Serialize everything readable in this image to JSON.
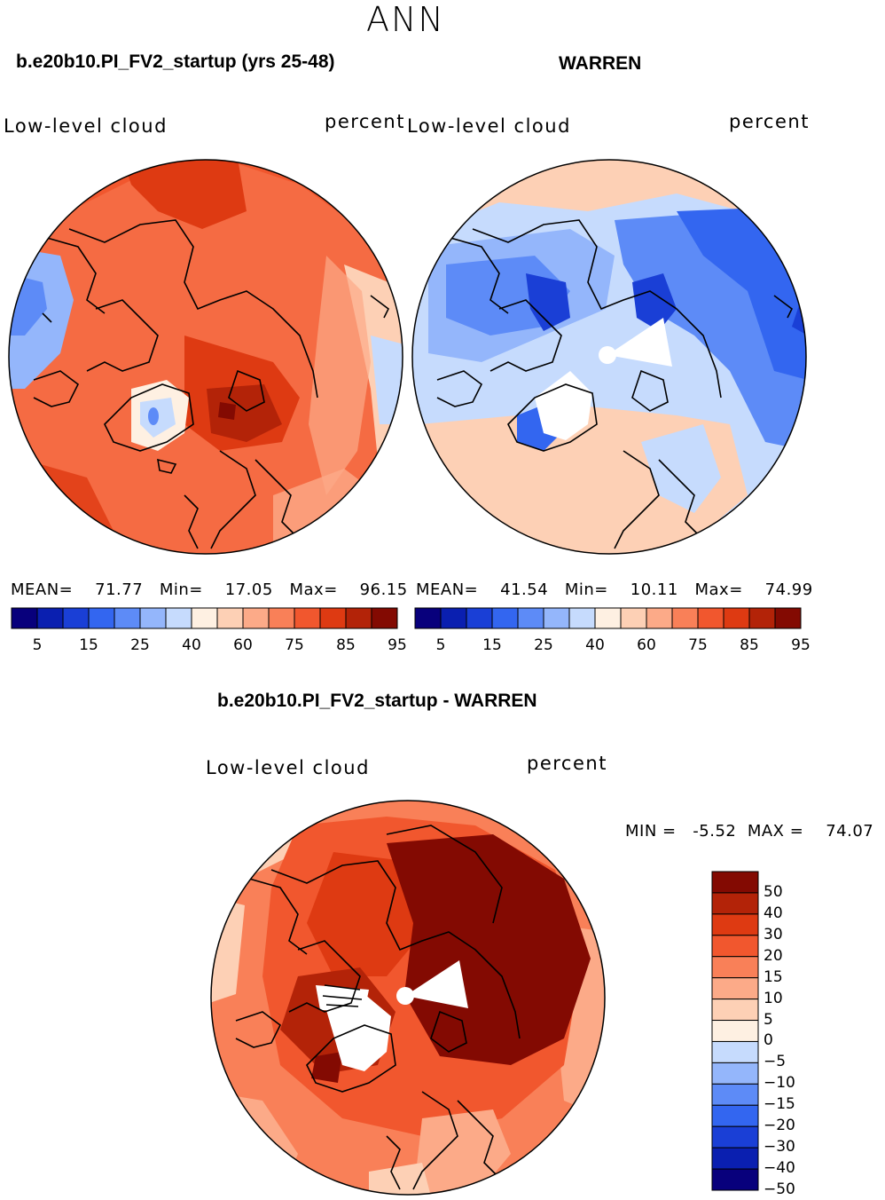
{
  "season": "ANN",
  "panels": [
    {
      "case_title": "b.e20b10.PI_FV2_startup (yrs 25-48)",
      "variable": "Low-level cloud",
      "units": "percent",
      "stats": {
        "mean_label": "MEAN=",
        "mean": "71.77",
        "min_label": "Min=",
        "min": "17.05",
        "max_label": "Max=",
        "max": "96.15"
      }
    },
    {
      "case_title": "WARREN",
      "variable": "Low-level cloud",
      "units": "percent",
      "stats": {
        "mean_label": "MEAN=",
        "mean": "41.54",
        "min_label": "Min=",
        "min": "10.11",
        "max_label": "Max=",
        "max": "74.99"
      }
    },
    {
      "case_title": "b.e20b10.PI_FV2_startup - WARREN",
      "variable": "Low-level cloud",
      "units": "percent",
      "stats": {
        "min_label": "MIN =",
        "min": "-5.52",
        "max_label": "MAX =",
        "max": "74.07"
      }
    }
  ],
  "colorbar_abs": {
    "colors": [
      "#08007c",
      "#0a1fb0",
      "#1a3fd6",
      "#3366f0",
      "#5d8bf7",
      "#94b6fb",
      "#c6dbfd",
      "#fef0e2",
      "#fdd0b5",
      "#fcaa88",
      "#f98058",
      "#f1572e",
      "#de3a12",
      "#b32308",
      "#830a02"
    ],
    "tick_labels": [
      "5",
      "15",
      "25",
      "40",
      "60",
      "75",
      "85",
      "95"
    ]
  },
  "colorbar_diff": {
    "colors": [
      "#830a02",
      "#b32308",
      "#de3a12",
      "#f1572e",
      "#f98058",
      "#fcaa88",
      "#fdd0b5",
      "#fef0e2",
      "#c6dbfd",
      "#94b6fb",
      "#5d8bf7",
      "#3366f0",
      "#1a3fd6",
      "#0a1fb0",
      "#08007c"
    ],
    "tick_labels": [
      "50",
      "40",
      "30",
      "20",
      "15",
      "10",
      "5",
      "0",
      "−5",
      "−10",
      "−15",
      "−20",
      "−30",
      "−40",
      "−50"
    ]
  }
}
